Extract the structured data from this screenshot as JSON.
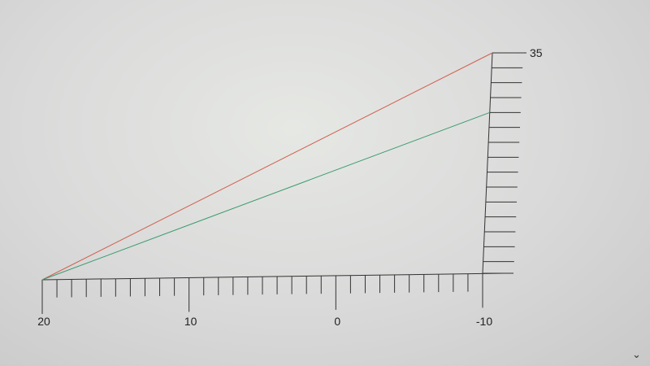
{
  "chart_data": {
    "type": "line",
    "title": "",
    "xlabel": "",
    "ylabel": "",
    "xlim": [
      20,
      -10
    ],
    "ylim": [
      20,
      35
    ],
    "x_tick_labels": [
      "20",
      "10",
      "0",
      "-10"
    ],
    "y_tick_labels": [
      "35"
    ],
    "x_minor_step": 1,
    "y_minor_step": 1,
    "y_axis_position": "right",
    "grid": false,
    "series": [
      {
        "color": "#d0604e",
        "x": [
          20,
          -10
        ],
        "y": [
          20,
          35
        ]
      },
      {
        "color": "#3a9a6e",
        "x": [
          20,
          -10
        ],
        "y": [
          20,
          31
        ]
      }
    ]
  },
  "ui": {
    "scroll_chevron_icon": "chevron-down-icon",
    "chevron_glyph": "⌄"
  }
}
